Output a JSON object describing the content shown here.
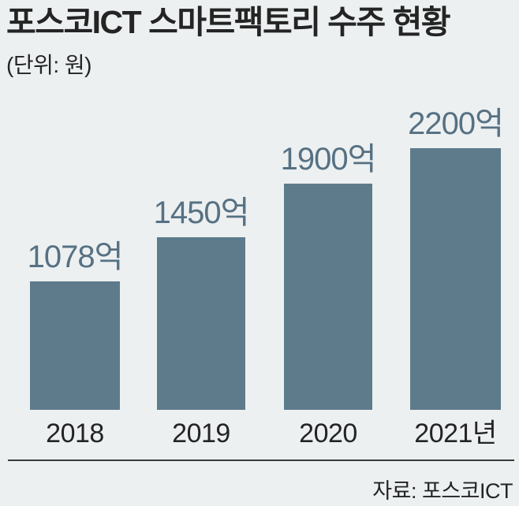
{
  "title": "포스코ICT 스마트팩토리 수주 현황",
  "unit_label": "(단위: 원)",
  "source_label": "자료: 포스코ICT",
  "colors": {
    "background": "#edf0f1",
    "bar": "#5e7b8c",
    "value_label": "#567183",
    "text": "#242424",
    "divider": "#3a3a3a"
  },
  "chart_data": {
    "type": "bar",
    "title": "포스코ICT 스마트팩토리 수주 현황",
    "unit_note": "(단위: 원)",
    "categories": [
      "2018",
      "2019",
      "2020",
      "2021년"
    ],
    "values": [
      1078,
      1450,
      1900,
      2200
    ],
    "value_labels": [
      "1078억",
      "1450억",
      "1900억",
      "2200억"
    ],
    "source": "자료: 포스코ICT",
    "ylim": [
      0,
      2400
    ],
    "grid": false,
    "legend": false,
    "orientation": "vertical"
  }
}
